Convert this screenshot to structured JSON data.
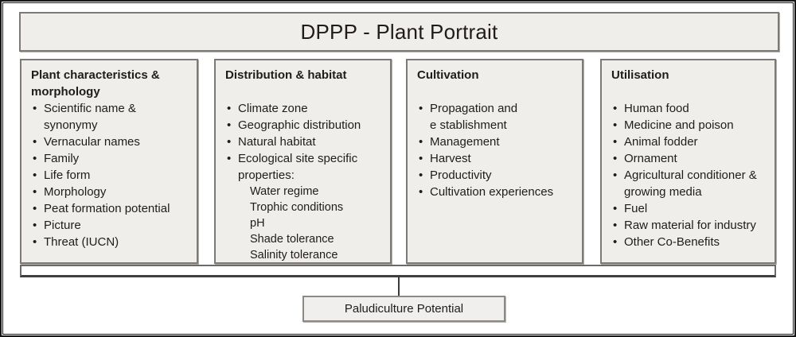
{
  "title": "DPPP - Plant Portrait",
  "columns": [
    {
      "heading": "Plant characteristics &\nmorphology",
      "items": [
        "Scientific name &\nsynonymy",
        "Vernacular names",
        "Family",
        "Life form",
        "Morphology",
        "Peat formation potential",
        "Picture",
        "Threat (IUCN)"
      ]
    },
    {
      "heading": "Distribution & habitat",
      "items": [
        "Climate zone",
        "Geographic distribution",
        "Natural habitat",
        "Ecological site specific\nproperties:"
      ],
      "subitems": [
        "Water regime",
        "Trophic conditions",
        "pH",
        "Shade tolerance",
        "Salinity tolerance"
      ]
    },
    {
      "heading": "Cultivation",
      "items": [
        "Propagation and\ne stablishment",
        "Management",
        "Harvest",
        "Productivity",
        "Cultivation experiences"
      ]
    },
    {
      "heading": "Utilisation",
      "items": [
        "Human food",
        "Medicine and poison",
        "Animal fodder",
        "Ornament",
        "Agricultural conditioner &\ngrowing media",
        "Fuel",
        "Raw material for industry",
        "Other Co-Benefits"
      ]
    }
  ],
  "footer": {
    "label": "Paludiculture Potential"
  },
  "colors": {
    "box_fill": "#f0eeeb",
    "box_border": "#7d7975",
    "frame_border": "#161616",
    "text": "#1f1c1a"
  }
}
